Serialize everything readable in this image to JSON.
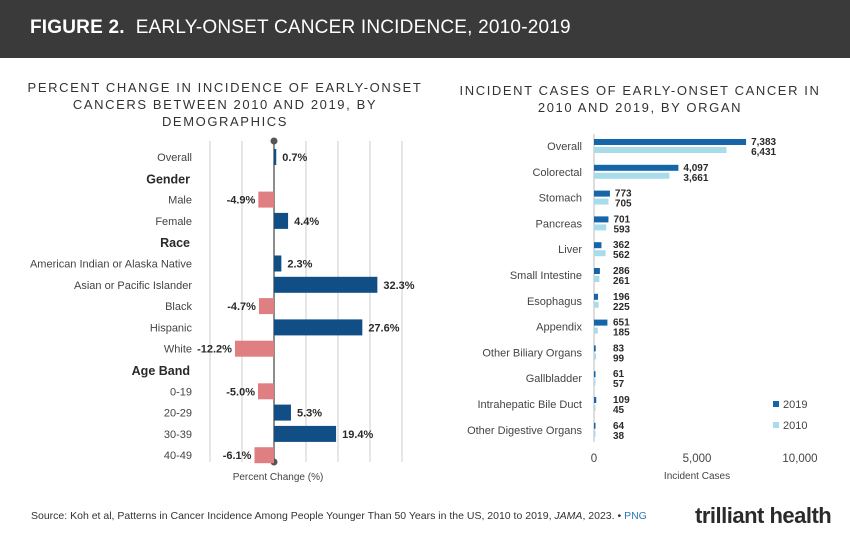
{
  "header": {
    "figure_label": "FIGURE 2.",
    "figure_title": "EARLY-ONSET CANCER INCIDENCE, 2010-2019"
  },
  "footer": {
    "source_pre": "Source: Koh et al, Patterns in Cancer Incidence Among People Younger Than 50 Years in the US, 2010 to 2019, ",
    "source_journal": "JAMA",
    "source_post": ", 2023. • ",
    "png_link": "PNG"
  },
  "logo": "trilliant health",
  "colors": {
    "positive": "#124e86",
    "negative": "#e07f82",
    "s2019": "#1565a8",
    "s2010": "#a9dcea",
    "grid": "#cccccc"
  },
  "chart_data": [
    {
      "type": "bar",
      "orientation": "horizontal",
      "title": "PERCENT CHANGE IN INCIDENCE OF EARLY-ONSET CANCERS BETWEEN 2010 AND 2019, BY DEMOGRAPHICS",
      "xlabel": "Percent Change (%)",
      "xlim": [
        -20,
        40
      ],
      "gridlines": [
        -20,
        -10,
        10,
        20,
        30,
        40
      ],
      "rows": [
        {
          "kind": "bar",
          "label": "Overall",
          "value": 0.7,
          "value_label": "0.7%"
        },
        {
          "kind": "group",
          "label": "Gender"
        },
        {
          "kind": "bar",
          "label": "Male",
          "value": -4.9,
          "value_label": "-4.9%"
        },
        {
          "kind": "bar",
          "label": "Female",
          "value": 4.4,
          "value_label": "4.4%"
        },
        {
          "kind": "group",
          "label": "Race"
        },
        {
          "kind": "bar",
          "label": "American Indian or Alaska Native",
          "value": 2.3,
          "value_label": "2.3%"
        },
        {
          "kind": "bar",
          "label": "Asian or Pacific Islander",
          "value": 32.3,
          "value_label": "32.3%"
        },
        {
          "kind": "bar",
          "label": "Black",
          "value": -4.7,
          "value_label": "-4.7%"
        },
        {
          "kind": "bar",
          "label": "Hispanic",
          "value": 27.6,
          "value_label": "27.6%"
        },
        {
          "kind": "bar",
          "label": "White",
          "value": -12.2,
          "value_label": "-12.2%"
        },
        {
          "kind": "group",
          "label": "Age Band"
        },
        {
          "kind": "bar",
          "label": "0-19",
          "value": -5.0,
          "value_label": "-5.0%"
        },
        {
          "kind": "bar",
          "label": "20-29",
          "value": 5.3,
          "value_label": "5.3%"
        },
        {
          "kind": "bar",
          "label": "30-39",
          "value": 19.4,
          "value_label": "19.4%"
        },
        {
          "kind": "bar",
          "label": "40-49",
          "value": -6.1,
          "value_label": "-6.1%"
        }
      ]
    },
    {
      "type": "bar",
      "orientation": "horizontal",
      "title": "INCIDENT CASES OF EARLY-ONSET CANCER IN 2010 AND 2019, BY ORGAN",
      "xlabel": "Incident Cases",
      "xlim": [
        0,
        10000
      ],
      "xticks": [
        0,
        5000,
        10000
      ],
      "xtick_labels": [
        "0",
        "5,000",
        "10,000"
      ],
      "legend_position": "bottom-right",
      "categories": [
        "Overall",
        "Colorectal",
        "Stomach",
        "Pancreas",
        "Liver",
        "Small Intestine",
        "Esophagus",
        "Appendix",
        "Other Biliary Organs",
        "Gallbladder",
        "Intrahepatic Bile Duct",
        "Other Digestive Organs"
      ],
      "series": [
        {
          "name": "2019",
          "values": [
            7383,
            4097,
            773,
            701,
            362,
            286,
            196,
            651,
            83,
            61,
            109,
            64
          ],
          "labels": [
            "7,383",
            "4,097",
            "773",
            "701",
            "362",
            "286",
            "196",
            "651",
            "83",
            "61",
            "109",
            "64"
          ]
        },
        {
          "name": "2010",
          "values": [
            6431,
            3661,
            705,
            593,
            562,
            261,
            225,
            185,
            99,
            57,
            45,
            38
          ],
          "labels": [
            "6,431",
            "3,661",
            "705",
            "593",
            "562",
            "261",
            "225",
            "185",
            "99",
            "57",
            "45",
            "38"
          ]
        }
      ]
    }
  ]
}
